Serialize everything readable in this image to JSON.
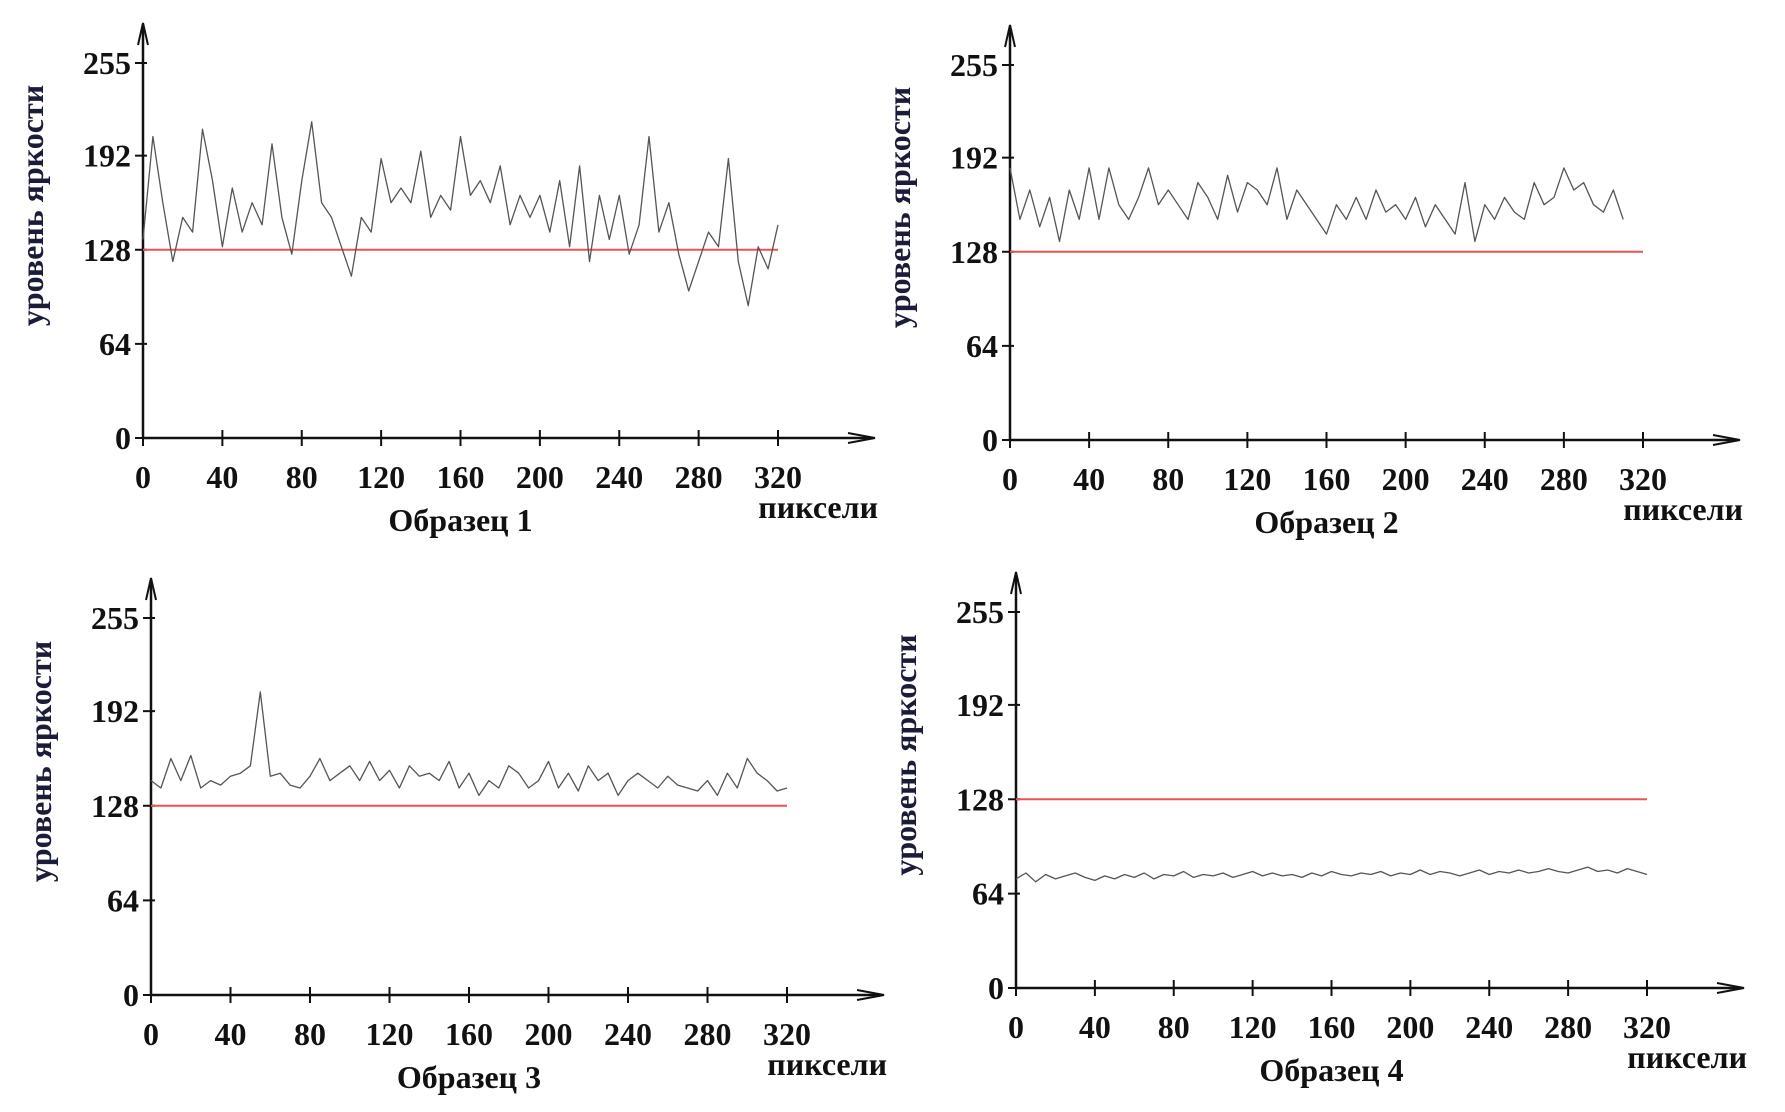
{
  "chart_data": [
    {
      "type": "line",
      "title": "Образец 1",
      "xlabel": "пиксели",
      "ylabel": "уровень яркости",
      "xticks": [
        0,
        40,
        80,
        120,
        160,
        200,
        240,
        280,
        320
      ],
      "yticks": [
        0,
        64,
        128,
        192,
        255
      ],
      "xlim": [
        0,
        320
      ],
      "ylim": [
        0,
        255
      ],
      "threshold": {
        "value": 128,
        "color": "#f05050"
      },
      "line_color": "#555555",
      "x_step": 5,
      "values": [
        135,
        205,
        160,
        120,
        150,
        140,
        210,
        175,
        130,
        170,
        140,
        160,
        145,
        200,
        150,
        125,
        175,
        215,
        160,
        150,
        130,
        110,
        150,
        140,
        190,
        160,
        170,
        160,
        195,
        150,
        165,
        155,
        205,
        165,
        175,
        160,
        185,
        145,
        165,
        150,
        165,
        140,
        175,
        130,
        185,
        120,
        165,
        135,
        165,
        125,
        145,
        205,
        140,
        160,
        125,
        100,
        120,
        140,
        130,
        190,
        120,
        90,
        130,
        115,
        145
      ]
    },
    {
      "type": "line",
      "title": "Образец  2",
      "xlabel": "пиксели",
      "ylabel": "уровень яркости",
      "xticks": [
        0,
        40,
        80,
        120,
        160,
        200,
        240,
        280,
        320
      ],
      "yticks": [
        0,
        64,
        128,
        192,
        255
      ],
      "xlim": [
        0,
        320
      ],
      "ylim": [
        0,
        255
      ],
      "threshold": {
        "value": 128,
        "color": "#f05050"
      },
      "line_color": "#555555",
      "x_step": 5,
      "values": [
        185,
        150,
        170,
        145,
        165,
        135,
        170,
        150,
        185,
        150,
        185,
        160,
        150,
        165,
        185,
        160,
        170,
        160,
        150,
        175,
        165,
        150,
        180,
        155,
        175,
        170,
        160,
        185,
        150,
        170,
        160,
        150,
        140,
        160,
        150,
        165,
        150,
        170,
        155,
        160,
        150,
        165,
        145,
        160,
        150,
        140,
        175,
        135,
        160,
        150,
        165,
        155,
        150,
        175,
        160,
        165,
        185,
        170,
        175,
        160,
        155,
        170,
        150
      ]
    },
    {
      "type": "line",
      "title": "Образец 3",
      "xlabel": "пиксели",
      "ylabel": "уровень яркости",
      "xticks": [
        0,
        40,
        80,
        120,
        160,
        200,
        240,
        280,
        320
      ],
      "yticks": [
        0,
        64,
        128,
        192,
        255
      ],
      "xlim": [
        0,
        320
      ],
      "ylim": [
        0,
        255
      ],
      "threshold": {
        "value": 128,
        "color": "#f05050"
      },
      "line_color": "#555555",
      "x_step": 5,
      "values": [
        145,
        140,
        160,
        145,
        162,
        140,
        145,
        142,
        148,
        150,
        155,
        205,
        148,
        150,
        142,
        140,
        148,
        160,
        145,
        150,
        155,
        145,
        158,
        145,
        152,
        140,
        155,
        148,
        150,
        145,
        158,
        140,
        150,
        135,
        145,
        140,
        155,
        150,
        140,
        145,
        158,
        140,
        150,
        138,
        155,
        145,
        150,
        135,
        145,
        150,
        145,
        140,
        148,
        142,
        140,
        138,
        145,
        135,
        150,
        140,
        160,
        150,
        145,
        138,
        140
      ]
    },
    {
      "type": "line",
      "title": "Образец 4",
      "xlabel": "пиксели",
      "ylabel": "уровень яркости",
      "xticks": [
        0,
        40,
        80,
        120,
        160,
        200,
        240,
        280,
        320
      ],
      "yticks": [
        0,
        64,
        128,
        192,
        255
      ],
      "xlim": [
        0,
        320
      ],
      "ylim": [
        0,
        255
      ],
      "threshold": {
        "value": 128,
        "color": "#f05050"
      },
      "line_color": "#555555",
      "x_step": 5,
      "values": [
        74,
        78,
        72,
        77,
        74,
        76,
        78,
        75,
        73,
        76,
        74,
        77,
        75,
        78,
        74,
        77,
        76,
        79,
        75,
        77,
        76,
        78,
        75,
        77,
        79,
        76,
        78,
        76,
        77,
        75,
        78,
        76,
        79,
        77,
        76,
        78,
        77,
        79,
        76,
        78,
        77,
        80,
        77,
        79,
        78,
        76,
        78,
        80,
        77,
        79,
        78,
        80,
        78,
        79,
        81,
        79,
        78,
        80,
        82,
        79,
        80,
        78,
        81,
        79,
        77
      ]
    }
  ]
}
